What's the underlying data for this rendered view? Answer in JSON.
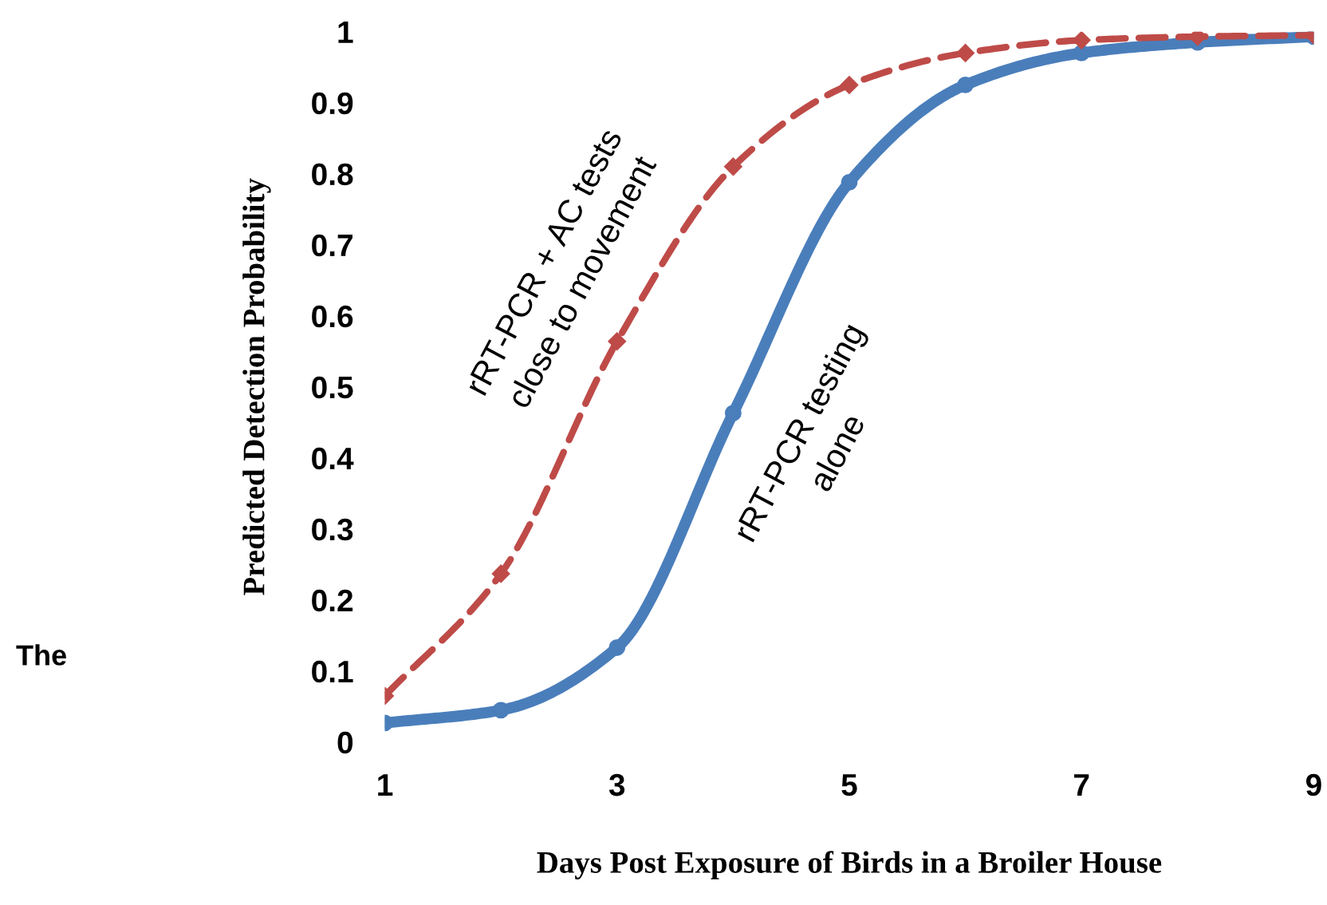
{
  "chart_data": {
    "type": "line",
    "xlabel": "Days Post Exposure of Birds in a Broiler House",
    "ylabel": "Predicted Detection Probability",
    "x": [
      1,
      2,
      3,
      4,
      5,
      6,
      7,
      8,
      9
    ],
    "series": [
      {
        "name": "rRT-PCR testing alone",
        "color": "#4a7ebb",
        "line_style": "solid",
        "marker": "circle",
        "values": [
          0.027,
          0.045,
          0.133,
          0.463,
          0.788,
          0.925,
          0.97,
          0.985,
          0.993
        ]
      },
      {
        "name": "rRT-PCR + AC tests close to movement",
        "color": "#be4b48",
        "line_style": "dashed",
        "marker": "diamond",
        "values": [
          0.065,
          0.237,
          0.564,
          0.81,
          0.925,
          0.97,
          0.988,
          0.993,
          0.995
        ]
      }
    ],
    "xlim": [
      1,
      9
    ],
    "ylim": [
      0,
      1
    ],
    "xticks": [
      1,
      3,
      5,
      7,
      9
    ],
    "yticks": [
      0,
      0.1,
      0.2,
      0.3,
      0.4,
      0.5,
      0.6,
      0.7,
      0.8,
      0.9,
      1
    ],
    "annotations": [
      "The"
    ],
    "grid": false,
    "legend": false
  }
}
